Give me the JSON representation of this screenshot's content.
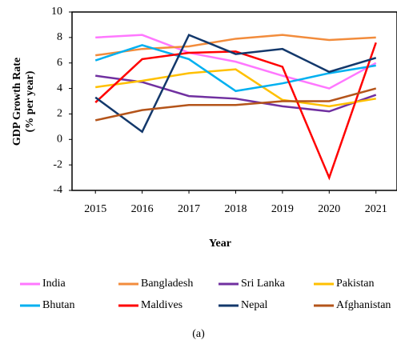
{
  "chart_data": {
    "type": "line",
    "y_label": [
      "GDP Growth Rate",
      "(% per year)"
    ],
    "x_label": "Year",
    "caption": "(a)",
    "x": [
      2015,
      2016,
      2017,
      2018,
      2019,
      2020,
      2021
    ],
    "xlim": [
      2014.5,
      2021.45
    ],
    "xticks": [
      2015,
      2016,
      2017,
      2018,
      2019,
      2020,
      2021
    ],
    "ylim": [
      -4,
      10
    ],
    "yticks": [
      -4,
      -2,
      0,
      2,
      4,
      6,
      8,
      10
    ],
    "series": [
      {
        "name": "India",
        "color": "#ff77ff",
        "values": [
          8.0,
          8.2,
          6.8,
          6.1,
          5.0,
          4.0,
          6.0
        ]
      },
      {
        "name": "Bangladesh",
        "color": "#f28c3c",
        "values": [
          6.6,
          7.1,
          7.3,
          7.9,
          8.2,
          7.8,
          8.0
        ]
      },
      {
        "name": "Sri Lanka",
        "color": "#7030a0",
        "values": [
          5.0,
          4.5,
          3.4,
          3.2,
          2.6,
          2.2,
          3.5
        ]
      },
      {
        "name": "Pakistan",
        "color": "#ffc000",
        "values": [
          4.1,
          4.6,
          5.2,
          5.5,
          3.1,
          2.6,
          3.2
        ]
      },
      {
        "name": "Bhutan",
        "color": "#00b0f0",
        "values": [
          6.2,
          7.4,
          6.3,
          3.8,
          4.4,
          5.2,
          5.8
        ]
      },
      {
        "name": "Maldives",
        "color": "#ff0000",
        "values": [
          2.9,
          6.3,
          6.8,
          6.9,
          5.7,
          -3.0,
          7.6
        ]
      },
      {
        "name": "Nepal",
        "color": "#13386b",
        "values": [
          3.3,
          0.6,
          8.2,
          6.7,
          7.1,
          5.3,
          6.4
        ]
      },
      {
        "name": "Afghanistan",
        "color": "#b4541a",
        "values": [
          1.5,
          2.3,
          2.7,
          2.7,
          3.0,
          3.0,
          4.0
        ]
      }
    ]
  }
}
